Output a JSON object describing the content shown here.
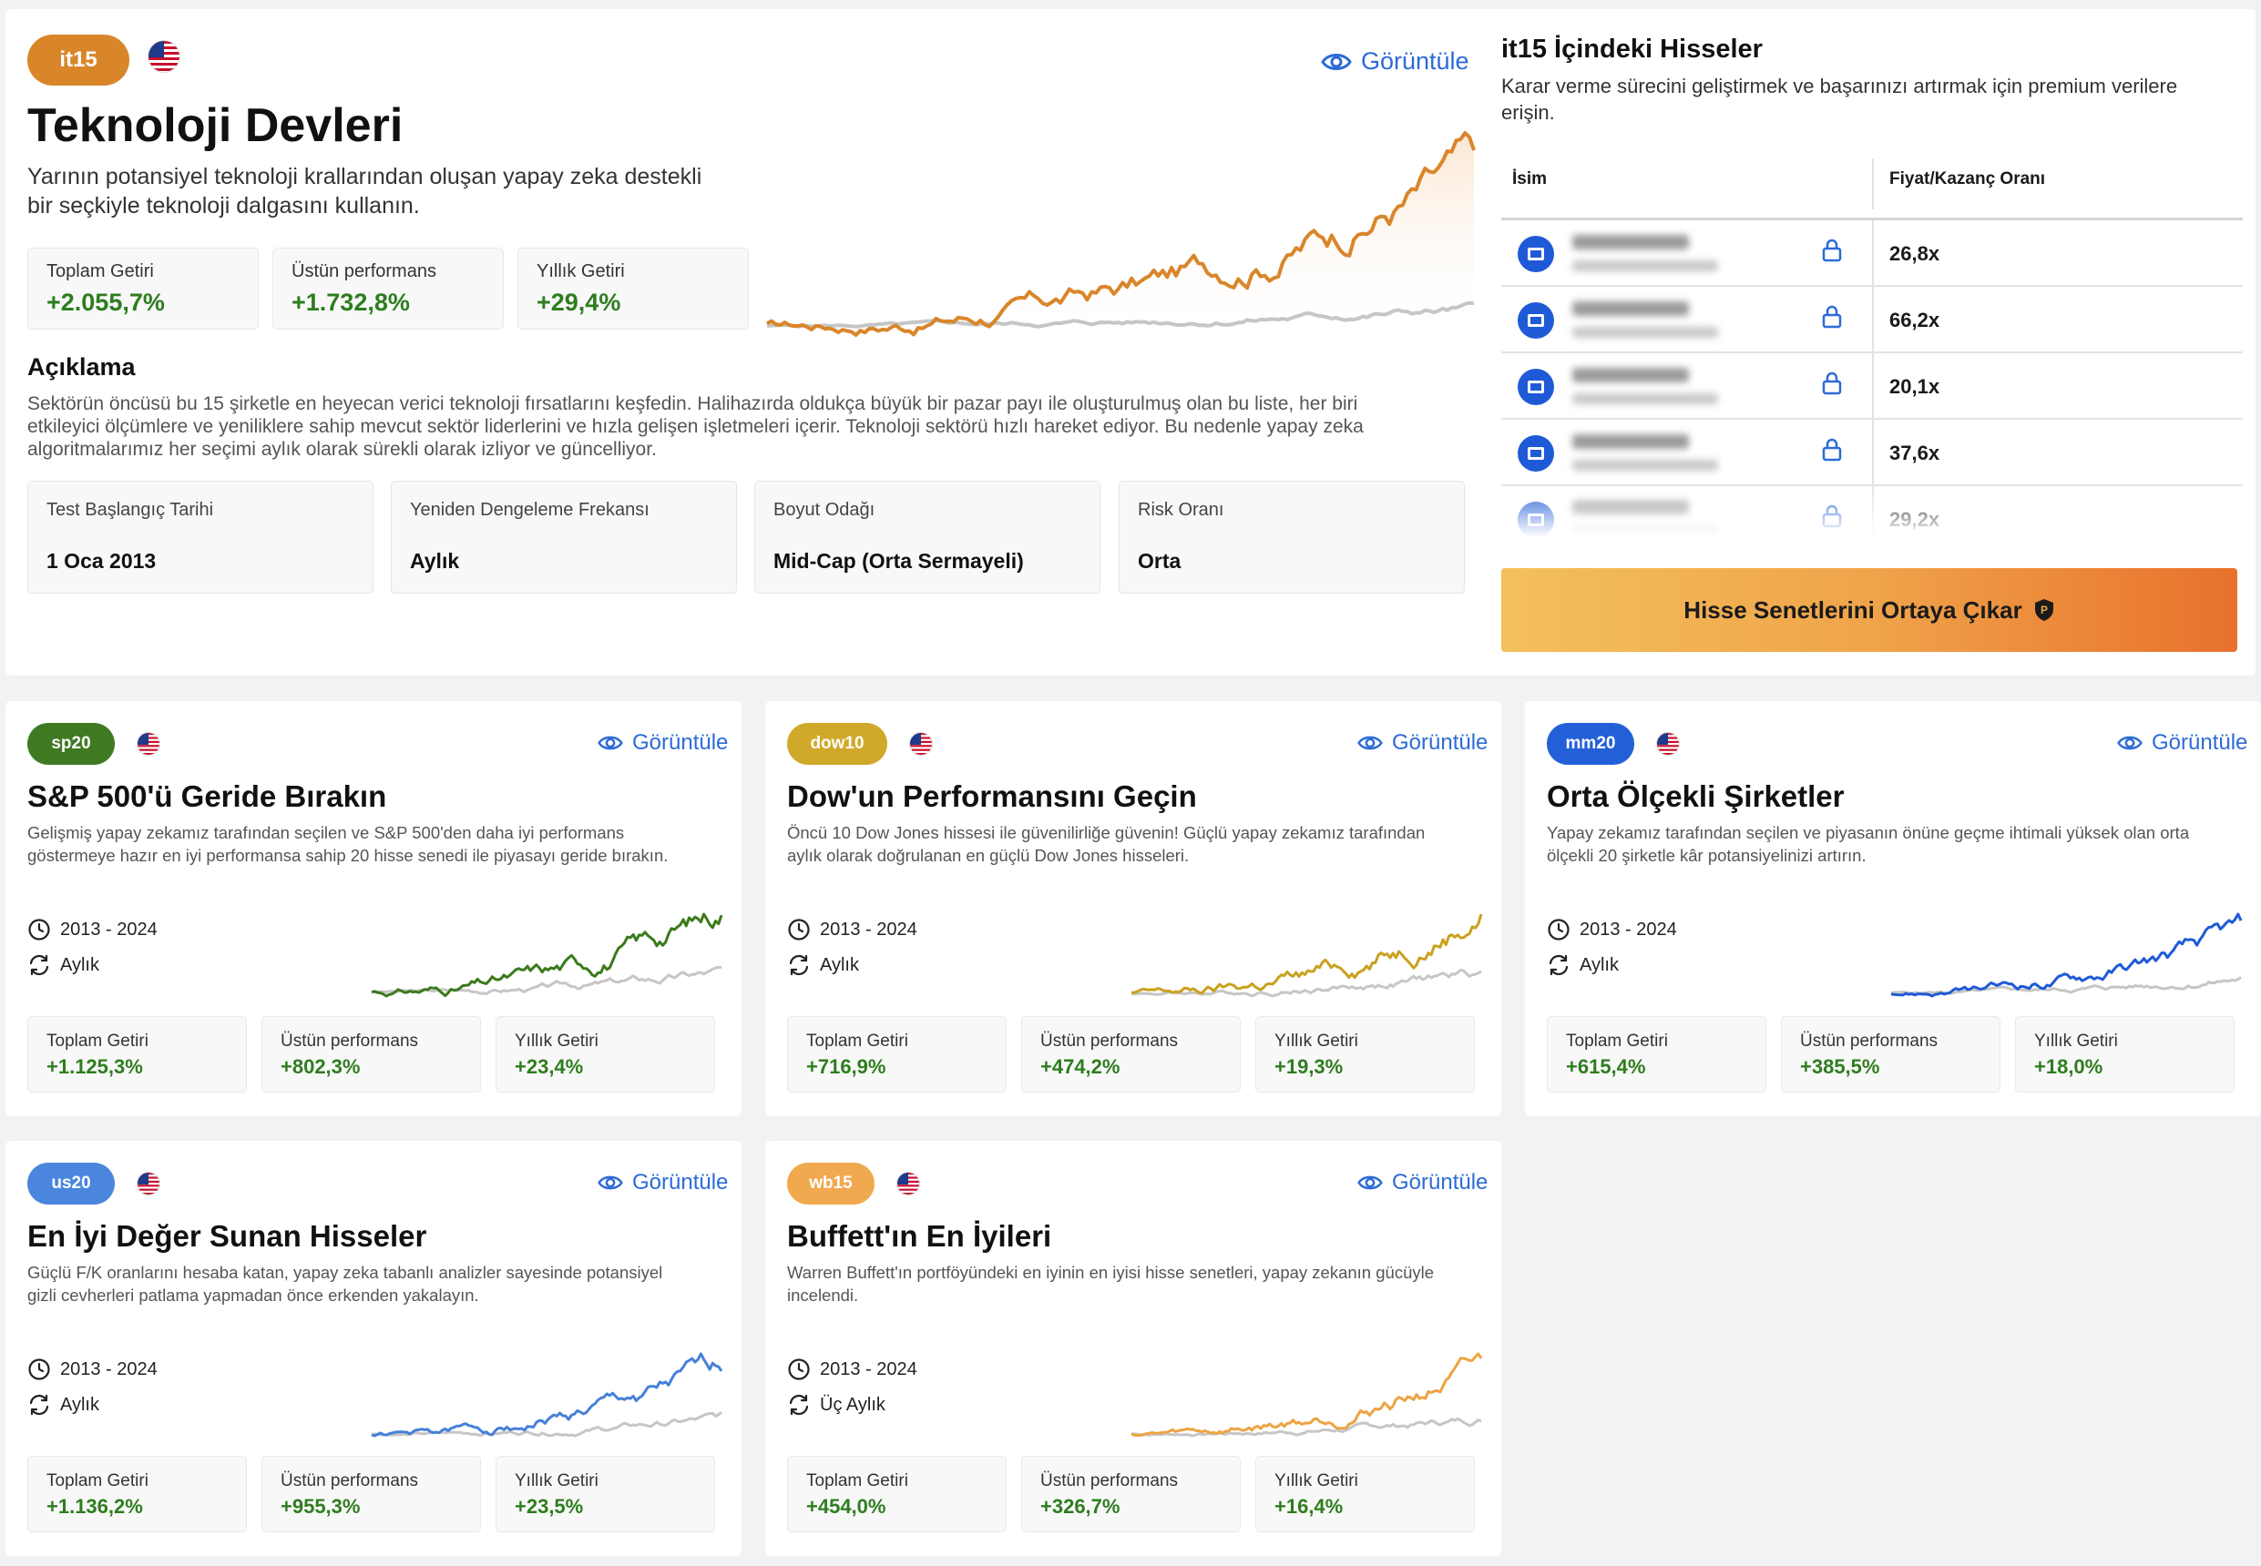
{
  "featured": {
    "badge": "it15",
    "badge_color": "#d9862a",
    "title": "Teknoloji Devleri",
    "subtitle_line1": "Yarının potansiyel teknoloji krallarından oluşan yapay zeka destekli",
    "subtitle_line2": "bir seçkiyle teknoloji dalgasını kullanın.",
    "view_label": "Görüntüle",
    "stats": [
      {
        "label": "Toplam Getiri",
        "value": "+2.055,7%"
      },
      {
        "label": "Üstün performans",
        "value": "+1.732,8%"
      },
      {
        "label": "Yıllık Getiri",
        "value": "+29,4%"
      }
    ],
    "description_heading": "Açıklama",
    "description_line1": "Sektörün öncüsü bu 15 şirketle en heyecan verici teknoloji fırsatlarını keşfedin. Halihazırda oldukça büyük bir pazar payı ile oluşturulmuş olan bu liste, her biri",
    "description_line2": "etkileyici ölçümlere ve yeniliklere sahip mevcut sektör liderlerini ve hızla gelişen işletmeleri içerir. Teknoloji sektörü hızlı hareket ediyor. Bu nedenle yapay zeka",
    "description_line3": "algoritmalarımız her seçimi aylık olarak sürekli olarak izliyor ve güncelliyor.",
    "info": [
      {
        "label": "Test Başlangıç Tarihi",
        "value": "1 Oca 2013"
      },
      {
        "label": "Yeniden Dengeleme Frekansı",
        "value": "Aylık"
      },
      {
        "label": "Boyut Odağı",
        "value": "Mid-Cap (Orta Sermayeli)"
      },
      {
        "label": "Risk Oranı",
        "value": "Orta"
      }
    ]
  },
  "holdings": {
    "title": "it15 İçindeki Hisseler",
    "subtitle_line1": "Karar verme sürecini geliştirmek ve başarınızı artırmak için premium verilere",
    "subtitle_line2": "erişin.",
    "col_name": "İsim",
    "col_pe": "Fiyat/Kazanç Oranı",
    "rows": [
      {
        "pe": "26,8x"
      },
      {
        "pe": "66,2x"
      },
      {
        "pe": "20,1x"
      },
      {
        "pe": "37,6x"
      },
      {
        "pe": "29,2x"
      }
    ],
    "cta_label": "Hisse Senetlerini Ortaya Çıkar"
  },
  "portfolios": [
    {
      "badge": "sp20",
      "badge_color": "#3f7a22",
      "line_color": "#3a7a1c",
      "title": "S&P 500'ü Geride Bırakın",
      "desc_line1": "Gelişmiş yapay zekamız tarafından seçilen ve S&P 500'den daha iyi performans",
      "desc_line2": "göstermeye hazır en iyi performansa sahip 20 hisse senedi ile piyasayı geride bırakın.",
      "period": "2013 - 2024",
      "frequency": "Aylık",
      "view_label": "Görüntüle",
      "stats": [
        {
          "label": "Toplam Getiri",
          "value": "+1.125,3%"
        },
        {
          "label": "Üstün performans",
          "value": "+802,3%"
        },
        {
          "label": "Yıllık Getiri",
          "value": "+23,4%"
        }
      ]
    },
    {
      "badge": "dow10",
      "badge_color": "#d1a92a",
      "line_color": "#c9a11f",
      "title": "Dow'un Performansını Geçin",
      "desc_line1": "Öncü 10 Dow Jones hissesi ile güvenilirliğe güvenin! Güçlü yapay zekamız tarafından",
      "desc_line2": "aylık olarak doğrulanan en güçlü Dow Jones hisseleri.",
      "period": "2013 - 2024",
      "frequency": "Aylık",
      "view_label": "Görüntüle",
      "stats": [
        {
          "label": "Toplam Getiri",
          "value": "+716,9%"
        },
        {
          "label": "Üstün performans",
          "value": "+474,2%"
        },
        {
          "label": "Yıllık Getiri",
          "value": "+19,3%"
        }
      ]
    },
    {
      "badge": "mm20",
      "badge_color": "#2360d8",
      "line_color": "#1f5ad6",
      "title": "Orta Ölçekli Şirketler",
      "desc_line1": "Yapay zekamız tarafından seçilen ve piyasanın önüne geçme ihtimali yüksek olan orta",
      "desc_line2": "ölçekli 20 şirketle kâr potansiyelinizi artırın.",
      "period": "2013 - 2024",
      "frequency": "Aylık",
      "view_label": "Görüntüle",
      "stats": [
        {
          "label": "Toplam Getiri",
          "value": "+615,4%"
        },
        {
          "label": "Üstün performans",
          "value": "+385,5%"
        },
        {
          "label": "Yıllık Getiri",
          "value": "+18,0%"
        }
      ]
    },
    {
      "badge": "us20",
      "badge_color": "#4a86dd",
      "line_color": "#4680d9",
      "title": "En İyi Değer Sunan Hisseler",
      "desc_line1": "Güçlü F/K oranlarını hesaba katan, yapay zeka tabanlı analizler sayesinde potansiyel",
      "desc_line2": "gizli cevherleri patlama yapmadan önce erkenden yakalayın.",
      "period": "2013 - 2024",
      "frequency": "Aylık",
      "view_label": "Görüntüle",
      "stats": [
        {
          "label": "Toplam Getiri",
          "value": "+1.136,2%"
        },
        {
          "label": "Üstün performans",
          "value": "+955,3%"
        },
        {
          "label": "Yıllık Getiri",
          "value": "+23,5%"
        }
      ]
    },
    {
      "badge": "wb15",
      "badge_color": "#f0a94e",
      "line_color": "#eda443",
      "title": "Buffett'ın En İyileri",
      "desc_line1": "Warren Buffett'ın portföyündeki en iyinin en iyisi hisse senetleri, yapay zekanın gücüyle",
      "desc_line2": "incelendi.",
      "period": "2013 - 2024",
      "frequency": "Üç Aylık",
      "view_label": "Görüntüle",
      "stats": [
        {
          "label": "Toplam Getiri",
          "value": "+454,0%"
        },
        {
          "label": "Üstün performans",
          "value": "+326,7%"
        },
        {
          "label": "Yıllık Getiri",
          "value": "+16,4%"
        }
      ]
    }
  ]
}
